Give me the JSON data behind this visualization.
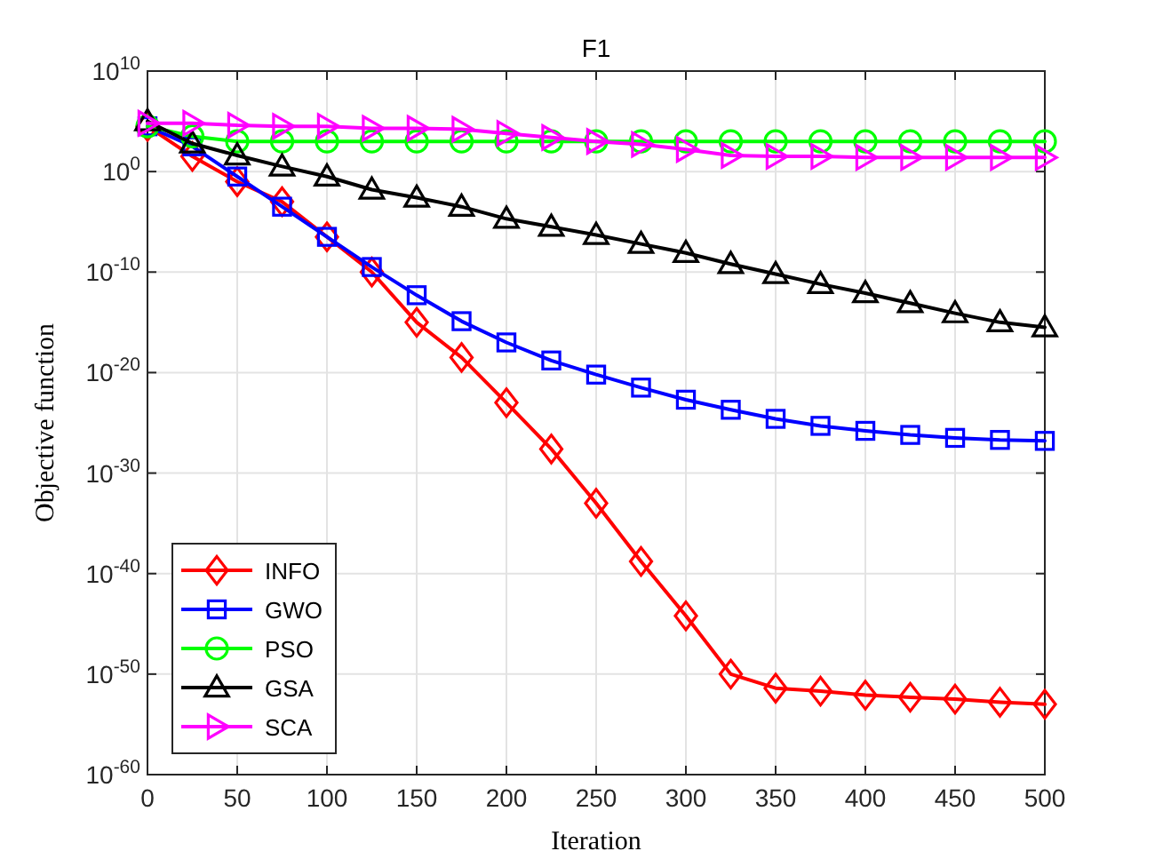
{
  "chart_data": {
    "type": "line",
    "title": "F1",
    "xlabel": "Iteration",
    "ylabel": "Objective function",
    "log": "y",
    "grid": true,
    "legend": "bottom left",
    "line_style": "solid",
    "x": [
      0,
      25,
      50,
      75,
      100,
      125,
      150,
      175,
      200,
      225,
      250,
      275,
      300,
      325,
      350,
      375,
      400,
      425,
      450,
      475,
      500
    ],
    "xlim": [
      0,
      500
    ],
    "xticks": [
      0,
      50,
      100,
      150,
      200,
      250,
      300,
      350,
      400,
      450,
      500
    ],
    "ylim": [
      1e-60,
      10000000000.0
    ],
    "yticks": [
      {
        "value": 1e-60,
        "label": "10$^{-60}$"
      },
      {
        "value": 1e-50,
        "label": "10$^{-50}$"
      },
      {
        "value": 1e-40,
        "label": "10$^{-40}$"
      },
      {
        "value": 1e-30,
        "label": "10$^{-30}$"
      },
      {
        "value": 1e-20,
        "label": "10$^{-20}$"
      },
      {
        "value": 1e-10,
        "label": "10$^{-10}$"
      },
      {
        "value": 1,
        "label": "10$^{0}$"
      },
      {
        "value": 10000000000.0,
        "label": "10$^{10}$"
      }
    ],
    "series": [
      {
        "name": "INFO",
        "color": "#ff0000",
        "marker": "diamond",
        "values": [
          32000.0,
          32,
          0.1,
          0.001,
          3.2e-07,
          1e-10,
          1e-15,
          3.2e-19,
          1e-23,
          2.5e-28,
          1e-33,
          1.6e-39,
          6.3e-45,
          1e-50,
          4e-52,
          2e-52,
          8e-53,
          5e-53,
          3.2e-53,
          1.6e-53,
          1e-53
        ]
      },
      {
        "name": "GWO",
        "color": "#0000ff",
        "marker": "square",
        "values": [
          32000.0,
          320,
          0.32,
          0.00032,
          3.2e-07,
          3.2e-10,
          5e-13,
          1.3e-15,
          1e-17,
          1.6e-19,
          6.3e-21,
          3.2e-22,
          2e-23,
          2e-24,
          2.5e-25,
          5e-26,
          1.6e-26,
          6.3e-27,
          3.2e-27,
          2e-27,
          1.6e-27
        ]
      },
      {
        "name": "PSO",
        "color": "#00ff00",
        "marker": "circle",
        "values": [
          32000.0,
          3200,
          1000,
          1000,
          1000,
          1000,
          1000,
          1000,
          1000,
          1000,
          1000,
          1000,
          1000,
          1000,
          1000,
          1000,
          1000,
          1000,
          1000,
          1000,
          1000
        ]
      },
      {
        "name": "GSA",
        "color": "#000000",
        "marker": "triangle",
        "values": [
          100000.0,
          630,
          40,
          3.2,
          0.32,
          0.016,
          0.0025,
          0.00032,
          2e-05,
          3.2e-06,
          5e-07,
          6.3e-08,
          8e-09,
          6.3e-10,
          6.3e-11,
          6.3e-12,
          8e-13,
          8e-14,
          8e-15,
          1e-15,
          3.2e-16
        ]
      },
      {
        "name": "SCA",
        "color": "#ff00ff",
        "marker": "triangle-right",
        "values": [
          63000.0,
          63000.0,
          40000.0,
          32000.0,
          32000.0,
          20000.0,
          20000.0,
          16000.0,
          6300,
          2500,
          1000,
          500,
          160,
          40,
          32,
          32,
          25,
          25,
          25,
          25,
          25
        ]
      }
    ]
  }
}
